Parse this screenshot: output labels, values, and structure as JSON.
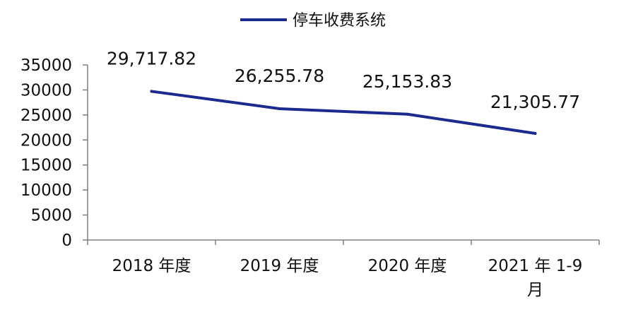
{
  "chart_data": {
    "type": "line",
    "title": "",
    "xlabel": "",
    "ylabel": "",
    "categories": [
      [
        "2018 年度"
      ],
      [
        "2019 年度"
      ],
      [
        "2020 年度"
      ],
      [
        "2021 年 1-9",
        "月"
      ]
    ],
    "series": [
      {
        "name": "停车收费系统",
        "color": "#1b2a8c",
        "values": [
          29717.82,
          26255.78,
          25153.83,
          21305.77
        ],
        "labels": [
          "29,717.82",
          "26,255.78",
          "25,153.83",
          "21,305.77"
        ]
      }
    ],
    "ylim": [
      0,
      35000
    ],
    "yticks": [
      0,
      5000,
      10000,
      15000,
      20000,
      25000,
      30000,
      35000
    ],
    "ytick_labels": [
      "0",
      "5000",
      "10000",
      "15000",
      "20000",
      "25000",
      "30000",
      "35000"
    ],
    "grid": false,
    "legend_position": "top-center",
    "axis_color": "#7f7f7f"
  }
}
